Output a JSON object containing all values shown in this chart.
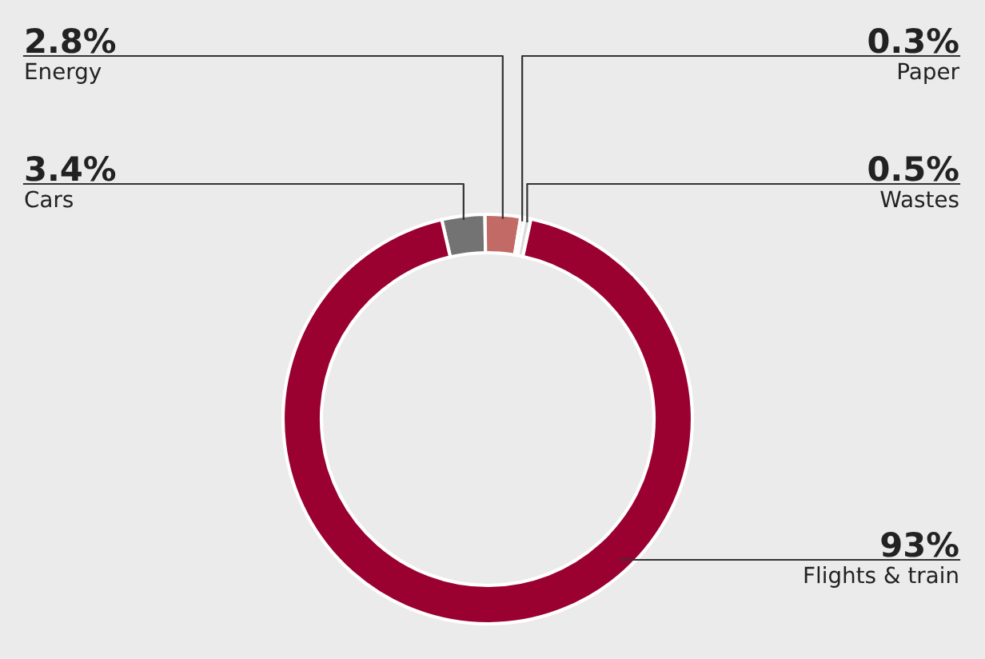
{
  "chart_data": {
    "type": "donut",
    "categories": [
      "Cars",
      "Energy",
      "Paper",
      "Wastes",
      "Flights & train"
    ],
    "values": [
      3.4,
      2.8,
      0.3,
      0.5,
      93
    ],
    "value_labels": [
      "3.4%",
      "2.8%",
      "0.3%",
      "0.5%",
      "93%"
    ],
    "colors": [
      "#737373",
      "#c26a66",
      "#bdbdbd",
      "#dcd8d8",
      "#9a0030"
    ],
    "legend": false
  }
}
